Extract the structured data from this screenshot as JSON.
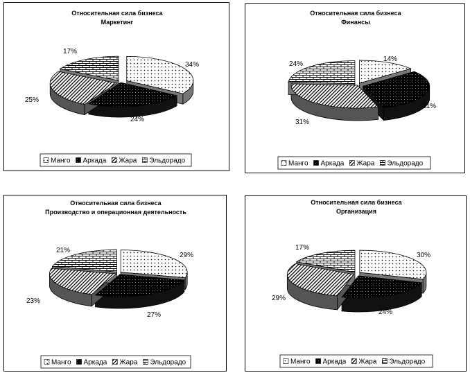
{
  "legend_labels": [
    "Манго",
    "Аркада",
    "Жара",
    "Эльдорадо"
  ],
  "chart_data": [
    {
      "type": "pie",
      "title": "Относительная сила бизнеса",
      "subtitle": "Маркетинг",
      "categories": [
        "Манго",
        "Аркада",
        "Жара",
        "Эльдорадо"
      ],
      "values": [
        34,
        24,
        25,
        17
      ],
      "labels": [
        "34%",
        "24%",
        "25%",
        "17%"
      ],
      "legend": "bottom",
      "style": "3d-exploded"
    },
    {
      "type": "pie",
      "title": "Относительная сила бизнеса",
      "subtitle": "Финансы",
      "categories": [
        "Манго",
        "Аркада",
        "Жара",
        "Эльдорадо"
      ],
      "values": [
        14,
        31,
        31,
        24
      ],
      "labels": [
        "14%",
        "31%",
        "31%",
        "24%"
      ],
      "legend": "bottom",
      "style": "3d-exploded"
    },
    {
      "type": "pie",
      "title": "Относительная сила бизнеса",
      "subtitle": "Производство и операционная деятельность",
      "categories": [
        "Манго",
        "Аркада",
        "Жара",
        "Эльдорадо"
      ],
      "values": [
        29,
        27,
        23,
        21
      ],
      "labels": [
        "29%",
        "27%",
        "23%",
        "21%"
      ],
      "legend": "bottom",
      "style": "3d-exploded"
    },
    {
      "type": "pie",
      "title": "Относительная сила бизнеса",
      "subtitle": "Организация",
      "categories": [
        "Манго",
        "Аркада",
        "Жара",
        "Эльдорадо"
      ],
      "values": [
        30,
        24,
        29,
        17
      ],
      "labels": [
        "30%",
        "24%",
        "29%",
        "17%"
      ],
      "legend": "bottom",
      "style": "3d-exploded"
    }
  ]
}
